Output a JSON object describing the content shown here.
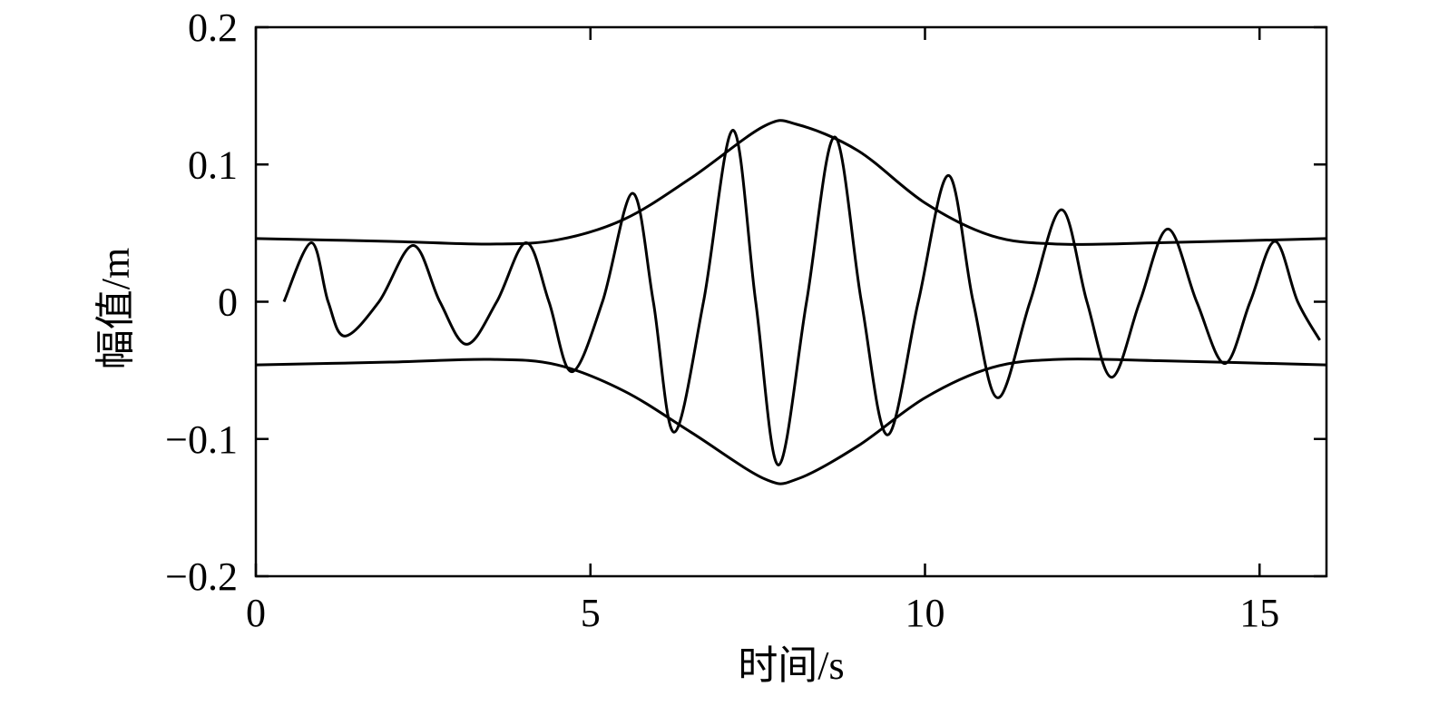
{
  "chart_data": {
    "type": "line",
    "xlabel": "时间/s",
    "ylabel": "幅值/m",
    "xlim": [
      0,
      16
    ],
    "ylim": [
      -0.2,
      0.2
    ],
    "xticks": [
      0,
      5,
      10,
      15
    ],
    "yticks": [
      {
        "value": -0.2,
        "label": "−0.2"
      },
      {
        "value": -0.1,
        "label": "−0.1"
      },
      0,
      0.1,
      0.2
    ],
    "series": [
      {
        "color": "#000000",
        "x": [
          0.42,
          0.83,
          1.08,
          1.33,
          1.84,
          2.35,
          2.75,
          3.15,
          3.6,
          4.04,
          4.38,
          4.72,
          5.18,
          5.63,
          5.94,
          6.25,
          6.69,
          7.13,
          7.47,
          7.81,
          8.23,
          8.65,
          9.05,
          9.44,
          9.9,
          10.35,
          10.72,
          11.09,
          11.57,
          12.04,
          12.42,
          12.79,
          13.21,
          13.63,
          14.06,
          14.48,
          14.86,
          15.23,
          15.57,
          15.9
        ],
        "values": [
          0.0,
          0.043,
          0.0,
          -0.025,
          0.0,
          0.041,
          0.0,
          -0.031,
          0.0,
          0.043,
          0.0,
          -0.051,
          0.0,
          0.079,
          0.0,
          -0.095,
          0.0,
          0.125,
          0.0,
          -0.119,
          0.0,
          0.12,
          0.0,
          -0.097,
          0.0,
          0.092,
          0.0,
          -0.07,
          0.0,
          0.067,
          0.0,
          -0.055,
          0.0,
          0.053,
          0.0,
          -0.045,
          0.0,
          0.044,
          0.0,
          -0.028
        ]
      },
      {
        "color": "#000000",
        "x": [
          0,
          2,
          3.5,
          4.5,
          5.5,
          6.5,
          7.6,
          8.1,
          9,
          10,
          11,
          12,
          13.5,
          16
        ],
        "values": [
          0.046,
          0.044,
          0.042,
          0.045,
          0.06,
          0.09,
          0.128,
          0.129,
          0.11,
          0.072,
          0.048,
          0.042,
          0.043,
          0.046
        ]
      },
      {
        "color": "#000000",
        "x": [
          0,
          2,
          3.5,
          4.5,
          5.5,
          6.5,
          7.6,
          8.1,
          9,
          10,
          11,
          12,
          13.5,
          16
        ],
        "values": [
          -0.046,
          -0.044,
          -0.042,
          -0.046,
          -0.065,
          -0.095,
          -0.129,
          -0.129,
          -0.105,
          -0.07,
          -0.048,
          -0.042,
          -0.043,
          -0.046
        ]
      }
    ]
  }
}
